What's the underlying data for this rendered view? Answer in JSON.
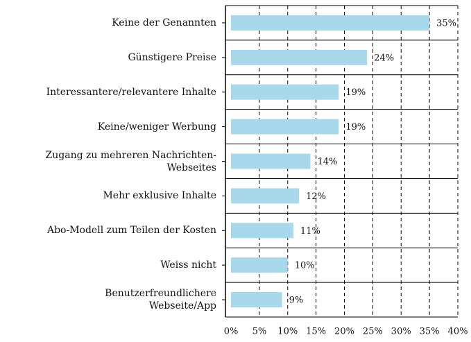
{
  "chart_data": {
    "type": "barh",
    "categories": [
      "Keine der Genannten",
      "Günstigere Preise",
      "Interessantere/relevantere Inhalte",
      "Keine/weniger Werbung",
      "Zugang zu mehreren Nachrichten-\nWebseites",
      "Mehr exklusive Inhalte",
      "Abo-Modell zum Teilen der Kosten",
      "Weiss nicht",
      "Benutzerfreundlichere\nWebseite/App"
    ],
    "values": [
      35,
      24,
      19,
      19,
      14,
      12,
      11,
      10,
      9
    ],
    "value_labels": [
      "35%",
      "24%",
      "19%",
      "19%",
      "14%",
      "12%",
      "11%",
      "10%",
      "9%"
    ],
    "color": "#a8d8ec",
    "xlim": [
      0,
      40
    ],
    "xticks": [
      {
        "value": 0,
        "label": "0%"
      },
      {
        "value": 5,
        "label": "5%"
      },
      {
        "value": 10,
        "label": "10%"
      },
      {
        "value": 15,
        "label": "15%"
      },
      {
        "value": 20,
        "label": "20%"
      },
      {
        "value": 25,
        "label": "25%"
      },
      {
        "value": 30,
        "label": "30%"
      },
      {
        "value": 35,
        "label": "35%"
      },
      {
        "value": 40,
        "label": "40%"
      }
    ],
    "grid": true
  }
}
